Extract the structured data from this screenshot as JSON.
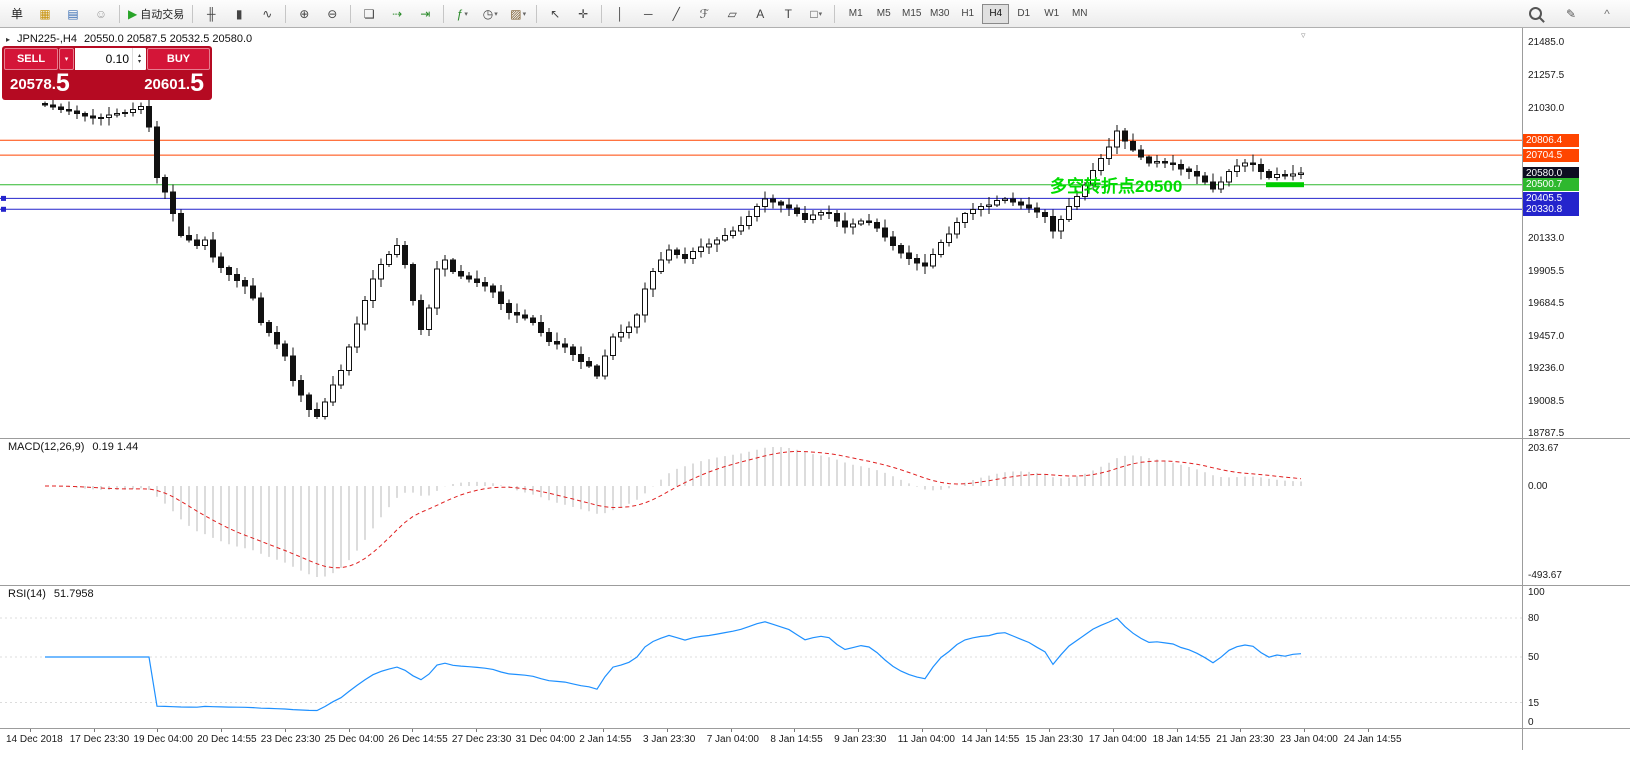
{
  "icons": {
    "caret_down": "▾",
    "caret_up_small": "▴",
    "caret_down_small": "▾",
    "symbol_marker": "▸",
    "shift_marker": "▿"
  },
  "toolbar": {
    "items": [
      {
        "name": "new-order-button",
        "glyph": "单",
        "color": "#222"
      },
      {
        "name": "metaeditor-button",
        "glyph": "▦",
        "color": "#c8920a"
      },
      {
        "name": "charts-window-button",
        "glyph": "▤",
        "color": "#3b6fb5"
      },
      {
        "name": "community-button",
        "glyph": "☺",
        "color": "#999"
      },
      {
        "sep": true
      },
      {
        "name": "autotrading-button",
        "glyph": "▶",
        "color": "#28a428",
        "label": "自动交易"
      },
      {
        "sep": true
      },
      {
        "name": "bars-chart-button",
        "glyph": "╫",
        "color": "#444"
      },
      {
        "name": "candles-chart-button",
        "glyph": "▮",
        "color": "#444"
      },
      {
        "name": "line-chart-button",
        "glyph": "∿",
        "color": "#444"
      },
      {
        "sep": true
      },
      {
        "name": "zoom-in-button",
        "glyph": "⊕",
        "color": "#444"
      },
      {
        "name": "zoom-out-button",
        "glyph": "⊖",
        "color": "#444"
      },
      {
        "sep": true
      },
      {
        "name": "tile-windows-button",
        "glyph": "❏",
        "color": "#444"
      },
      {
        "name": "auto-scroll-button",
        "glyph": "⇢",
        "color": "#2a8a2a"
      },
      {
        "name": "chart-shift-button",
        "glyph": "⇥",
        "color": "#2a8a2a"
      },
      {
        "sep": true
      },
      {
        "name": "indicators-button",
        "glyph": "ƒ",
        "color": "#2a8a2a",
        "caret": true
      },
      {
        "name": "periods-button",
        "glyph": "◷",
        "color": "#444",
        "caret": true
      },
      {
        "name": "templates-button",
        "glyph": "▨",
        "color": "#7a5a2a",
        "caret": true
      },
      {
        "sep": true
      },
      {
        "name": "cursor-button",
        "glyph": "↖",
        "color": "#444"
      },
      {
        "name": "crosshair-button",
        "glyph": "✛",
        "color": "#444"
      },
      {
        "sep": true
      },
      {
        "name": "vline-button",
        "glyph": "│",
        "color": "#444"
      },
      {
        "name": "hline-button",
        "glyph": "─",
        "color": "#444"
      },
      {
        "name": "trendline-button",
        "glyph": "╱",
        "color": "#444"
      },
      {
        "name": "fibo-button",
        "glyph": "ℱ",
        "color": "#444"
      },
      {
        "name": "channel-button",
        "glyph": "▱",
        "color": "#444"
      },
      {
        "name": "text-button",
        "glyph": "A",
        "color": "#444"
      },
      {
        "name": "label-button",
        "glyph": "T",
        "color": "#444"
      },
      {
        "name": "shapes-button",
        "glyph": "□",
        "color": "#444",
        "caret": true
      },
      {
        "sep": true
      }
    ],
    "timeframes": {
      "items": [
        "M1",
        "M5",
        "M15",
        "M30",
        "H1",
        "H4",
        "D1",
        "W1",
        "MN"
      ],
      "active": "H4"
    },
    "right_items": [
      {
        "name": "search-button",
        "type": "lens"
      },
      {
        "name": "edit-button",
        "glyph": "✎",
        "color": "#555"
      },
      {
        "name": "collapse-toolbar-button",
        "glyph": "^",
        "color": "#777"
      }
    ]
  },
  "chart": {
    "header": {
      "symbol": "JPN225-,H4",
      "ohlc": "20550.0 20587.5 20532.5 20580.0"
    },
    "annotation": {
      "text": "多空转折点20500",
      "color": "#00dd00"
    },
    "highlight": {
      "price": 20500.7,
      "bar_start": 153,
      "bar_end": 157,
      "color": "#00cc00"
    },
    "hlines": [
      {
        "price": 20806.4,
        "label": "20806.4",
        "color": "#ff4500"
      },
      {
        "price": 20704.5,
        "label": "20704.5",
        "color": "#ff4500"
      },
      {
        "price": 20580.0,
        "label": "20580.0",
        "color": "#0d0d21",
        "line": false,
        "current": true
      },
      {
        "price": 20500.7,
        "label": "20500.7",
        "color": "#2eb82e"
      },
      {
        "price": 20405.5,
        "label": "20405.5",
        "color": "#2424cc",
        "handle": true
      },
      {
        "price": 20330.8,
        "label": "20330.8",
        "color": "#2424cc",
        "handle": true
      }
    ],
    "price_axis_labels": [
      "21485.0",
      "21257.5",
      "21030.0",
      "20133.0",
      "19905.5",
      "19684.5",
      "19457.0",
      "19236.0",
      "19008.5",
      "18787.5"
    ]
  },
  "trade": {
    "sell_label": "SELL",
    "buy_label": "BUY",
    "lot": "0.10",
    "sell_price_prefix": "20578.",
    "sell_price_big": "5",
    "buy_price_prefix": "20601.",
    "buy_price_big": "5",
    "panel_color": "#b50a22",
    "button_color": "#d41538"
  },
  "macd": {
    "title": "MACD(12,26,9)",
    "values_text": "0.19 1.44",
    "axis_top": "203.67",
    "axis_zero": "0.00",
    "axis_bottom": "-493.67",
    "fast": 12,
    "slow": 26,
    "signal": 9,
    "histogram_color": "#b8b8b8",
    "signal_color": "#e02020"
  },
  "rsi": {
    "title": "RSI(14)",
    "value_text": "51.7958",
    "period": 14,
    "axis_labels": [
      "100",
      "80",
      "50",
      "15",
      "0"
    ],
    "level_lines": [
      80,
      50,
      15
    ],
    "line_color": "#1E90FF"
  },
  "time_axis": {
    "labels": [
      "14 Dec 2018",
      "17 Dec 23:30",
      "19 Dec 04:00",
      "20 Dec 14:55",
      "23 Dec 23:30",
      "25 Dec 04:00",
      "26 Dec 14:55",
      "27 Dec 23:30",
      "31 Dec 04:00",
      "2 Jan 14:55",
      "3 Jan 23:30",
      "7 Jan 04:00",
      "8 Jan 14:55",
      "9 Jan 23:30",
      "11 Jan 04:00",
      "14 Jan 14:55",
      "15 Jan 23:30",
      "17 Jan 04:00",
      "18 Jan 14:55",
      "21 Jan 23:30",
      "23 Jan 04:00",
      "24 Jan 14:55"
    ]
  },
  "chart_data": {
    "type": "candlestick",
    "symbol": "JPN225-",
    "timeframe": "H4",
    "title": "JPN225-,H4",
    "ohlc_header": {
      "open": 20550.0,
      "high": 20587.5,
      "low": 20532.5,
      "close": 20580.0
    },
    "visible_price_range": [
      18787.5,
      21485.0
    ],
    "first_open": 21060,
    "closes": [
      21050,
      21035,
      21020,
      21010,
      20990,
      20975,
      20960,
      20965,
      20980,
      20990,
      21000,
      21020,
      21040,
      20900,
      20550,
      20450,
      20300,
      20150,
      20120,
      20080,
      20120,
      20000,
      19930,
      19880,
      19840,
      19800,
      19720,
      19550,
      19480,
      19400,
      19320,
      19150,
      19050,
      18950,
      18900,
      19000,
      19120,
      19220,
      19380,
      19540,
      19700,
      19850,
      19950,
      20020,
      20080,
      19950,
      19700,
      19500,
      19650,
      19920,
      19980,
      19900,
      19870,
      19850,
      19825,
      19800,
      19760,
      19680,
      19620,
      19600,
      19580,
      19550,
      19480,
      19420,
      19400,
      19380,
      19330,
      19280,
      19250,
      19180,
      19320,
      19450,
      19480,
      19520,
      19600,
      19780,
      19900,
      19980,
      20050,
      20020,
      19990,
      20040,
      20070,
      20090,
      20120,
      20150,
      20180,
      20220,
      20280,
      20350,
      20400,
      20380,
      20360,
      20340,
      20300,
      20260,
      20290,
      20310,
      20300,
      20250,
      20210,
      20230,
      20250,
      20240,
      20200,
      20140,
      20080,
      20030,
      19990,
      19960,
      19940,
      20020,
      20100,
      20160,
      20240,
      20300,
      20330,
      20350,
      20360,
      20390,
      20400,
      20380,
      20360,
      20340,
      20310,
      20280,
      20180,
      20260,
      20350,
      20420,
      20500,
      20600,
      20680,
      20760,
      20870,
      20800,
      20740,
      20690,
      20650,
      20660,
      20650,
      20640,
      20610,
      20590,
      20560,
      20520,
      20470,
      20520,
      20590,
      20630,
      20650,
      20640,
      20590,
      20550,
      20570,
      20560,
      20575,
      20580
    ],
    "horizontal_levels": [
      20806.4,
      20704.5,
      20580.0,
      20500.7,
      20405.5,
      20330.8
    ]
  }
}
